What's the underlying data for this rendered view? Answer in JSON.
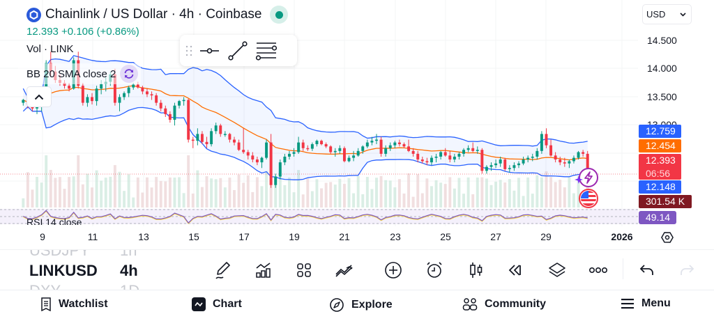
{
  "header": {
    "title": "Chainlink / US Dollar · 4h · Coinbase",
    "symbol_name": "Chainlink / US Dollar",
    "interval": "4h",
    "exchange": "Coinbase",
    "logo_icon": "chainlink-logo-icon",
    "market_status": "open",
    "price_line": "12.393  +0.106 (+0.86%)",
    "last_price": "12.393",
    "change": "+0.106",
    "change_pct": "(+0.86%)"
  },
  "indicators": {
    "volume_label": "Vol · LINK",
    "bb_label": "BB 20 SMA close 2",
    "rsi_label": "RSI 14 close"
  },
  "currency_select": {
    "value": "USD"
  },
  "price_axis": {
    "ticks": [
      "14.500",
      "14.000",
      "13.500",
      "13.000"
    ],
    "tags": [
      {
        "label": "12.759",
        "color": "#2962ff",
        "name": "bb-upper-tag"
      },
      {
        "label": "12.454",
        "color": "#ff6d00",
        "name": "bb-basis-tag"
      },
      {
        "label": "12.393",
        "sub": "06:56",
        "color": "#f23645",
        "name": "last-price-tag"
      },
      {
        "label": "12.148",
        "color": "#2962ff",
        "name": "bb-lower-tag"
      },
      {
        "label": "301.54 K",
        "color": "#801922",
        "name": "volume-tag"
      },
      {
        "label": "49.14",
        "color": "#7e57c2",
        "name": "rsi-tag"
      }
    ]
  },
  "time_axis": {
    "ticks": [
      "9",
      "11",
      "13",
      "15",
      "17",
      "19",
      "21",
      "23",
      "25",
      "27",
      "29"
    ],
    "year": "2026"
  },
  "symbol_scroller": {
    "prev": {
      "symbol": "USDJPY",
      "interval": "1h"
    },
    "current": {
      "symbol": "LINKUSD",
      "interval": "4h"
    },
    "next": {
      "symbol": "DXY",
      "interval": "1D"
    }
  },
  "toolbar_icons": [
    "draw-icon",
    "indicators-icon",
    "layouts-icon",
    "compare-icon",
    "add-icon",
    "alert-icon",
    "chart-type-icon",
    "replay-icon",
    "layers-icon",
    "more-icon",
    "undo-icon",
    "redo-icon"
  ],
  "bottom_nav": [
    {
      "label": "Watchlist",
      "icon": "watchlist-icon"
    },
    {
      "label": "Chart",
      "icon": "chart-icon",
      "active": true
    },
    {
      "label": "Explore",
      "icon": "explore-icon"
    },
    {
      "label": "Community",
      "icon": "community-icon"
    },
    {
      "label": "Menu",
      "icon": "menu-icon"
    }
  ],
  "colors": {
    "up": "#089981",
    "down": "#f23645",
    "bb_band": "#2962ff",
    "bb_basis": "#ff6d00",
    "rsi": "#7e57c2",
    "rsi_ma": "#f7d84a"
  },
  "chart_data": {
    "type": "candlestick",
    "title": "Chainlink / US Dollar · 4h · Coinbase",
    "y_range": [
      12.0,
      14.75
    ],
    "x_labels": [
      "9",
      "11",
      "13",
      "15",
      "17",
      "19",
      "21",
      "23",
      "25",
      "27",
      "29",
      "2026"
    ],
    "last_price": 12.393,
    "bb_upper_last": 12.759,
    "bb_basis_last": 12.454,
    "bb_lower_last": 12.148,
    "volume_last": "301.54 K",
    "rsi_last": 49.14,
    "candles": [
      [
        13.65,
        13.72,
        13.6,
        13.7
      ],
      [
        13.7,
        13.8,
        13.55,
        13.62
      ],
      [
        13.62,
        13.7,
        13.5,
        13.55
      ],
      [
        13.55,
        13.62,
        13.45,
        13.58
      ],
      [
        13.58,
        13.75,
        13.5,
        13.72
      ],
      [
        13.72,
        14.4,
        13.65,
        14.35
      ],
      [
        14.35,
        14.55,
        14.1,
        14.2
      ],
      [
        14.2,
        14.3,
        14.0,
        14.05
      ],
      [
        14.05,
        14.15,
        13.95,
        14.0
      ],
      [
        14.0,
        14.05,
        13.9,
        13.95
      ],
      [
        13.95,
        14.0,
        13.85,
        13.9
      ],
      [
        13.9,
        14.45,
        13.88,
        14.4
      ],
      [
        14.4,
        14.55,
        13.9,
        13.95
      ],
      [
        13.95,
        14.0,
        13.6,
        13.65
      ],
      [
        13.65,
        13.8,
        13.58,
        13.75
      ],
      [
        13.75,
        13.82,
        13.62,
        13.68
      ],
      [
        13.68,
        13.95,
        13.6,
        13.9
      ],
      [
        13.9,
        14.05,
        13.8,
        13.98
      ],
      [
        13.98,
        14.1,
        13.85,
        14.02
      ],
      [
        14.02,
        14.2,
        13.95,
        14.15
      ],
      [
        14.15,
        14.25,
        13.6,
        13.65
      ],
      [
        13.65,
        13.8,
        13.5,
        13.75
      ],
      [
        13.75,
        13.85,
        13.7,
        13.82
      ],
      [
        13.82,
        13.95,
        13.75,
        13.92
      ],
      [
        13.92,
        14.0,
        13.88,
        13.97
      ],
      [
        13.97,
        14.02,
        13.9,
        13.92
      ],
      [
        13.92,
        13.95,
        13.8,
        13.85
      ],
      [
        13.85,
        13.9,
        13.75,
        13.8
      ],
      [
        13.8,
        13.85,
        13.7,
        13.78
      ],
      [
        13.78,
        13.82,
        13.6,
        13.65
      ],
      [
        13.65,
        13.7,
        13.5,
        13.55
      ],
      [
        13.55,
        13.6,
        13.4,
        13.45
      ],
      [
        13.45,
        13.5,
        13.3,
        13.35
      ],
      [
        13.35,
        13.65,
        13.25,
        13.6
      ],
      [
        13.6,
        13.7,
        13.55,
        13.68
      ],
      [
        13.68,
        13.75,
        13.6,
        13.7
      ],
      [
        13.7,
        13.72,
        12.95,
        13.0
      ],
      [
        13.0,
        13.05,
        12.85,
        12.98
      ],
      [
        12.98,
        13.2,
        12.9,
        13.1
      ],
      [
        13.1,
        13.15,
        12.92,
        12.96
      ],
      [
        12.96,
        13.05,
        12.85,
        12.92
      ],
      [
        12.92,
        13.2,
        12.88,
        13.15
      ],
      [
        13.15,
        13.3,
        13.1,
        13.25
      ],
      [
        13.25,
        13.28,
        13.05,
        13.1
      ],
      [
        13.1,
        13.15,
        13.05,
        13.1
      ],
      [
        13.1,
        13.12,
        12.95,
        13.0
      ],
      [
        13.0,
        13.05,
        12.9,
        12.95
      ],
      [
        12.95,
        13.0,
        12.8,
        12.82
      ],
      [
        12.82,
        13.2,
        12.75,
        12.78
      ],
      [
        12.78,
        12.82,
        12.65,
        12.72
      ],
      [
        12.72,
        12.78,
        12.6,
        12.65
      ],
      [
        12.65,
        12.7,
        12.55,
        12.6
      ],
      [
        12.6,
        12.7,
        12.5,
        12.68
      ],
      [
        12.68,
        13.0,
        12.65,
        12.95
      ],
      [
        12.95,
        13.1,
        12.15,
        12.2
      ],
      [
        12.2,
        12.4,
        12.15,
        12.35
      ],
      [
        12.35,
        12.65,
        12.3,
        12.6
      ],
      [
        12.6,
        12.75,
        12.55,
        12.7
      ],
      [
        12.7,
        12.8,
        12.65,
        12.75
      ],
      [
        12.75,
        12.85,
        12.7,
        12.78
      ],
      [
        12.78,
        13.05,
        12.75,
        12.95
      ],
      [
        12.95,
        13.0,
        12.8,
        12.85
      ],
      [
        12.85,
        12.9,
        12.8,
        12.84
      ],
      [
        12.84,
        12.95,
        12.8,
        12.92
      ],
      [
        12.92,
        13.0,
        12.88,
        12.98
      ],
      [
        12.98,
        13.0,
        12.9,
        12.92
      ],
      [
        12.92,
        12.95,
        12.85,
        12.88
      ],
      [
        12.88,
        12.9,
        12.75,
        12.78
      ],
      [
        12.78,
        12.85,
        12.7,
        12.8
      ],
      [
        12.8,
        12.9,
        12.75,
        12.85
      ],
      [
        12.85,
        12.88,
        12.6,
        12.62
      ],
      [
        12.62,
        12.72,
        12.6,
        12.68
      ],
      [
        12.68,
        12.8,
        12.62,
        12.72
      ],
      [
        12.72,
        12.85,
        12.7,
        12.8
      ],
      [
        12.8,
        12.9,
        12.75,
        12.88
      ],
      [
        12.88,
        13.0,
        12.85,
        12.95
      ],
      [
        12.95,
        13.05,
        12.9,
        12.98
      ],
      [
        12.98,
        13.1,
        12.92,
        13.0
      ],
      [
        13.0,
        13.05,
        12.7,
        12.75
      ],
      [
        12.75,
        12.9,
        12.7,
        12.85
      ],
      [
        12.85,
        12.95,
        12.8,
        12.9
      ],
      [
        12.9,
        12.98,
        12.85,
        12.95
      ],
      [
        12.95,
        13.0,
        12.88,
        12.92
      ],
      [
        12.92,
        12.95,
        12.85,
        12.88
      ],
      [
        12.88,
        13.0,
        12.78,
        12.8
      ],
      [
        12.8,
        12.85,
        12.7,
        12.75
      ],
      [
        12.75,
        12.8,
        12.6,
        12.65
      ],
      [
        12.65,
        12.7,
        12.58,
        12.62
      ],
      [
        12.62,
        12.68,
        12.55,
        12.6
      ],
      [
        12.6,
        12.72,
        12.55,
        12.68
      ],
      [
        12.68,
        12.75,
        12.6,
        12.7
      ],
      [
        12.7,
        12.8,
        12.65,
        12.78
      ],
      [
        12.78,
        12.85,
        12.7,
        12.72
      ],
      [
        12.72,
        12.8,
        12.6,
        12.65
      ],
      [
        12.65,
        12.75,
        12.6,
        12.7
      ],
      [
        12.7,
        12.78,
        12.65,
        12.75
      ],
      [
        12.75,
        12.85,
        12.7,
        12.82
      ],
      [
        12.82,
        12.9,
        12.78,
        12.85
      ],
      [
        12.85,
        12.95,
        12.78,
        12.8
      ],
      [
        12.8,
        12.88,
        12.75,
        12.82
      ],
      [
        12.82,
        12.85,
        12.4,
        12.45
      ],
      [
        12.45,
        12.55,
        12.4,
        12.52
      ],
      [
        12.52,
        12.6,
        12.45,
        12.55
      ],
      [
        12.55,
        12.65,
        12.5,
        12.58
      ],
      [
        12.58,
        12.7,
        12.52,
        12.65
      ],
      [
        12.65,
        12.68,
        12.45,
        12.48
      ],
      [
        12.48,
        12.55,
        12.42,
        12.5
      ],
      [
        12.5,
        12.6,
        12.45,
        12.55
      ],
      [
        12.55,
        12.62,
        12.5,
        12.58
      ],
      [
        12.58,
        12.7,
        12.55,
        12.65
      ],
      [
        12.65,
        12.72,
        12.6,
        12.68
      ],
      [
        12.68,
        12.75,
        12.62,
        12.7
      ],
      [
        12.7,
        12.85,
        12.65,
        12.8
      ],
      [
        12.8,
        13.15,
        12.75,
        13.1
      ],
      [
        13.1,
        13.2,
        12.85,
        12.9
      ],
      [
        12.9,
        13.0,
        12.7,
        12.72
      ],
      [
        12.72,
        12.78,
        12.6,
        12.65
      ],
      [
        12.65,
        12.7,
        12.55,
        12.6
      ],
      [
        12.6,
        12.68,
        12.52,
        12.58
      ],
      [
        12.58,
        12.65,
        12.5,
        12.62
      ],
      [
        12.62,
        12.72,
        12.58,
        12.68
      ],
      [
        12.68,
        12.8,
        12.65,
        12.78
      ],
      [
        12.78,
        12.82,
        12.7,
        12.75
      ],
      [
        12.75,
        12.8,
        12.36,
        12.393
      ]
    ]
  }
}
